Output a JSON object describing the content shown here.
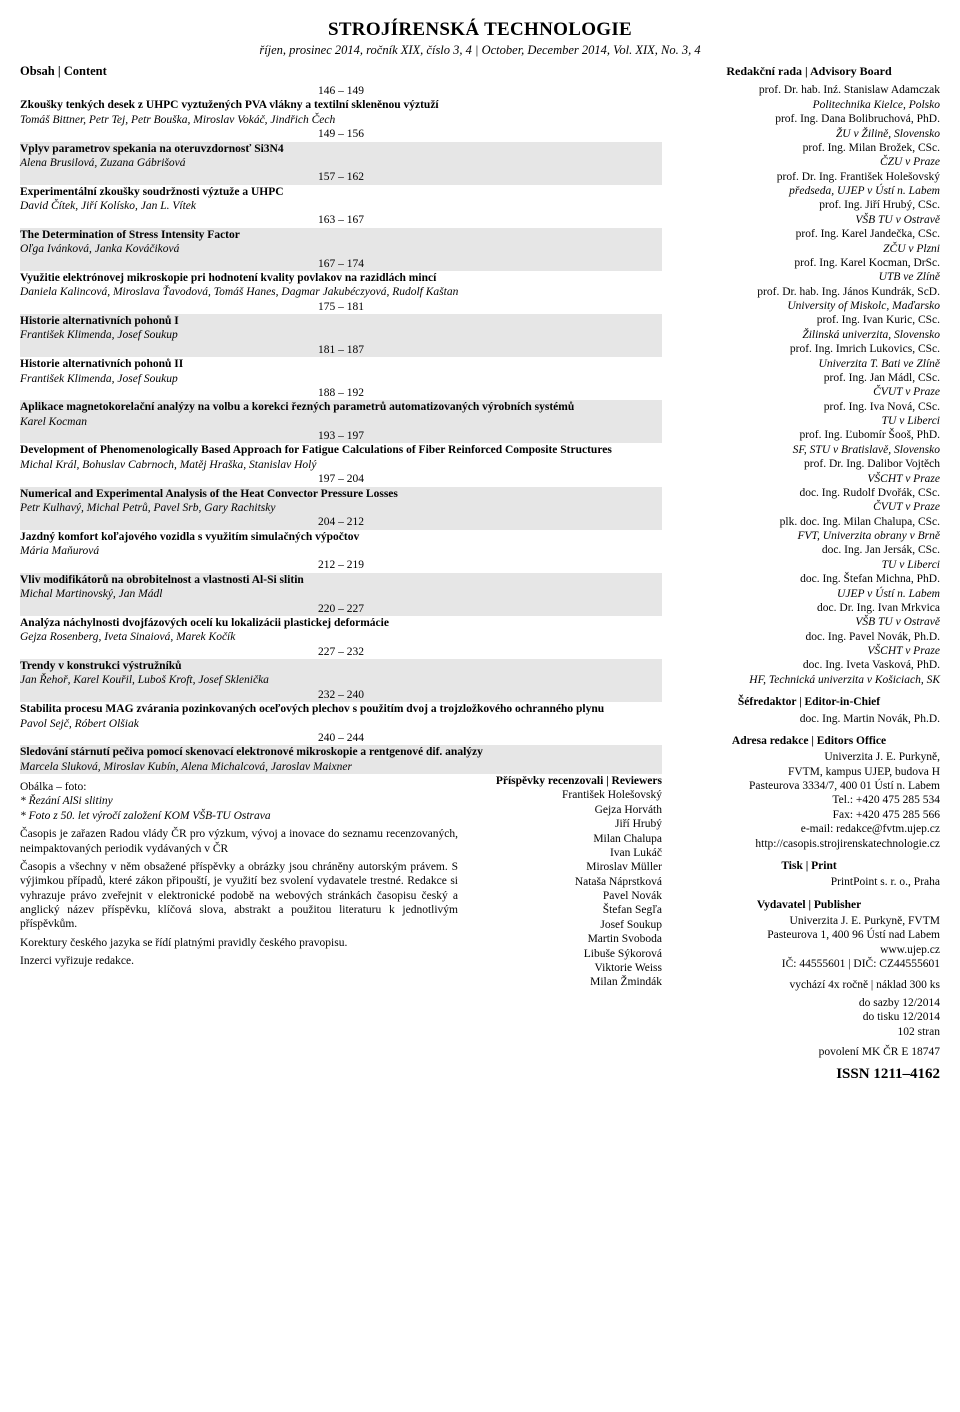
{
  "header": {
    "title": "STROJÍRENSKÁ TECHNOLOGIE",
    "subtitle": "říjen, prosinec 2014, ročník XIX, číslo 3, 4 | October, December 2014, Vol. XIX, No. 3, 4"
  },
  "obsah_label": "Obsah | Content",
  "entries": [
    {
      "pages": "146 – 149",
      "title": "Zkoušky tenkých desek z UHPC vyztužených PVA vlákny a textilní skleněnou výztuží",
      "authors": "Tomáš Bittner, Petr Tej, Petr Bouška, Miroslav Vokáč, Jindřich Čech",
      "gray": false
    },
    {
      "pages": "149 – 156",
      "title": "Vplyv parametrov spekania na oteruvzdornosť Si3N4",
      "authors": "Alena Brusilová, Zuzana Gábrišová",
      "gray": true
    },
    {
      "pages": "157 – 162",
      "title": "Experimentální zkoušky soudržnosti výztuže a UHPC",
      "authors": "David Čítek, Jiří Kolísko, Jan L. Vítek",
      "gray": false
    },
    {
      "pages": "163 – 167",
      "title": "The Determination of Stress Intensity Factor",
      "authors": "Oľga Ivánková, Janka Kováčiková",
      "gray": true
    },
    {
      "pages": "167 – 174",
      "title": "Využitie elektrónovej mikroskopie pri hodnotení kvality povlakov na razidlách mincí",
      "authors": "Daniela Kalincová, Miroslava Ťavodová, Tomáš Hanes, Dagmar Jakubéczyová, Rudolf Kaštan",
      "gray": false
    },
    {
      "pages": "175 – 181",
      "title": "Historie alternativních pohonů I",
      "authors": "František Klimenda, Josef Soukup",
      "gray": true
    },
    {
      "pages": "181 – 187",
      "title": "Historie alternativních pohonů II",
      "authors": "František Klimenda, Josef Soukup",
      "gray": false
    },
    {
      "pages": "188 – 192",
      "title": "Aplikace magnetokorelační analýzy na volbu a korekci řezných parametrů automatizovaných výrobních systémů",
      "authors": "Karel Kocman",
      "gray": true
    },
    {
      "pages": "193 – 197",
      "title": "Development of Phenomenologically Based Approach for Fatigue Calculations of Fiber Reinforced Composite Structures",
      "authors": "Michal Král, Bohuslav Cabrnoch, Matěj Hraška, Stanislav Holý",
      "gray": false
    },
    {
      "pages": "197 – 204",
      "title": "Numerical and Experimental Analysis of the Heat Convector Pressure Losses",
      "authors": "Petr Kulhavý, Michal Petrů, Pavel Srb, Gary Rachitsky",
      "gray": true
    },
    {
      "pages": "204 – 212",
      "title": "Jazdný komfort koľajového vozidla s využitím simulačných výpočtov",
      "authors": "Mária Maňurová",
      "gray": false
    },
    {
      "pages": "212 – 219",
      "title": "Vliv modifikátorů na obrobitelnost a vlastnosti Al-Si slitin",
      "authors": "Michal Martinovský, Jan Mádl",
      "gray": true
    },
    {
      "pages": "220 – 227",
      "title": "Analýza náchylnosti dvojfázových ocelí ku lokalizácii plastickej deformácie",
      "authors": "Gejza Rosenberg, Iveta Sinaiová, Marek Kočík",
      "gray": false
    },
    {
      "pages": "227 – 232",
      "title": "Trendy v konstrukci výstružníků",
      "authors": "Jan Řehoř, Karel Kouřil, Luboš Kroft, Josef Sklenička",
      "gray": true
    },
    {
      "pages": "232 – 240",
      "title": "Stabilita procesu MAG zvárania pozinkovaných oceľových plechov s použitím dvoj a trojzložkového ochranného plynu",
      "authors": "Pavol Sejč, Róbert Olšiak",
      "gray": false
    },
    {
      "pages": "240 – 244",
      "title": "Sledování stárnutí pečiva pomocí skenovací elektronové mikroskopie a rentgenové dif. analýzy",
      "authors": "Marcela Sluková, Miroslav Kubín, Alena Michalcová, Jaroslav Maixner",
      "gray": true
    }
  ],
  "cover": {
    "heading": "Obálka – foto:",
    "line1": "* Řezání AlSi slitiny",
    "line2": "* Foto z 50. let výročí založení KOM VŠB-TU Ostrava"
  },
  "disclaimers": [
    "Časopis je zařazen Radou vlády ČR pro výzkum, vývoj a inovace do seznamu recenzovaných, neimpaktovaných periodik vydávaných v ČR",
    "Časopis a všechny v něm obsažené příspěvky a obrázky jsou chráněny autorským právem. S výjimkou případů, které zákon připouští, je využití bez svolení vydavatele trestné. Redakce si vyhrazuje právo zveřejnit v elektronické podobě na webových stránkách časopisu český a anglický název příspěvku, klíčová slova, abstrakt a použitou literaturu k jednotlivým příspěvkům.",
    "Korektury českého jazyka se řídí platnými pravidly českého pravopisu.",
    "Inzerci vyřizuje redakce."
  ],
  "reviewers": {
    "heading": "Příspěvky recenzovali | Reviewers",
    "names": [
      "František Holešovský",
      "Gejza Horváth",
      "Jiří Hrubý",
      "Milan Chalupa",
      "Ivan Lukáč",
      "Miroslav Müller",
      "Nataša Náprstková",
      "Pavel Novák",
      "Štefan Segľa",
      "Josef Soukup",
      "Martin Svoboda",
      "Libuše Sýkorová",
      "Viktorie Weiss",
      "Milan Žmindák"
    ]
  },
  "board_heading": "Redakční rada | Advisory Board",
  "board": [
    {
      "name": "prof. Dr. hab. Inź. Stanislaw Adamczak",
      "aff": "Politechnika Kielce, Polsko"
    },
    {
      "name": "prof. Ing. Dana Bolibruchová, PhD.",
      "aff": "ŽU v Žilině, Slovensko"
    },
    {
      "name": "prof. Ing. Milan Brožek, CSc.",
      "aff": "ČZU v Praze"
    },
    {
      "name": "prof. Dr. Ing. František Holešovský",
      "aff": "předseda, UJEP v Ústí n. Labem"
    },
    {
      "name": "prof. Ing. Jiří Hrubý, CSc.",
      "aff": "VŠB TU v Ostravě"
    },
    {
      "name": "prof. Ing. Karel Jandečka, CSc.",
      "aff": "ZČU v Plzni"
    },
    {
      "name": "prof. Ing. Karel Kocman, DrSc.",
      "aff": "UTB ve Zlíně"
    },
    {
      "name": "prof. Dr. hab. Ing. János Kundrák, ScD.",
      "aff": "University of Miskolc, Maďarsko"
    },
    {
      "name": "prof. Ing. Ivan Kuric, CSc.",
      "aff": "Žilinská univerzita, Slovensko"
    },
    {
      "name": "prof. Ing. Imrich Lukovics, CSc.",
      "aff": "Univerzita T. Bati ve Zlíně"
    },
    {
      "name": "prof. Ing. Jan Mádl, CSc.",
      "aff": "ČVUT v Praze"
    },
    {
      "name": "prof. Ing. Iva Nová, CSc.",
      "aff": "TU v Liberci"
    },
    {
      "name": "prof. Ing. Ľubomír Šooš, PhD.",
      "aff": "SF, STU v Bratislavě, Slovensko"
    },
    {
      "name": "prof. Dr. Ing. Dalibor Vojtěch",
      "aff": "VŠCHT v Praze"
    },
    {
      "name": "doc. Ing. Rudolf Dvořák, CSc.",
      "aff": "ČVUT v Praze"
    },
    {
      "name": "plk. doc. Ing. Milan Chalupa, CSc.",
      "aff": "FVT, Univerzita obrany v Brně"
    },
    {
      "name": "doc. Ing. Jan Jersák, CSc.",
      "aff": "TU v Liberci"
    },
    {
      "name": "doc. Ing. Štefan Michna, PhD.",
      "aff": "UJEP v Ústí n. Labem"
    },
    {
      "name": "doc. Dr. Ing. Ivan Mrkvica",
      "aff": "VŠB TU v Ostravě"
    },
    {
      "name": "doc. Ing. Pavel Novák, Ph.D.",
      "aff": "VŠCHT v Praze"
    },
    {
      "name": "doc. Ing. Iveta Vasková, PhD.",
      "aff": "HF, Technická univerzita v Košiciach, SK"
    }
  ],
  "editor_chief": {
    "heading": "Šéfredaktor | Editor-in-Chief",
    "name": "doc. Ing. Martin Novák, Ph.D."
  },
  "editors_office": {
    "heading": "Adresa redakce | Editors Office",
    "lines": [
      "Univerzita J. E. Purkyně,",
      "FVTM, kampus UJEP, budova H",
      "Pasteurova 3334/7, 400 01 Ústí n. Labem",
      "Tel.: +420 475 285 534",
      "Fax: +420 475 285 566",
      "e-mail: redakce@fvtm.ujep.cz",
      "http://casopis.strojirenskatechnologie.cz"
    ]
  },
  "print": {
    "heading": "Tisk | Print",
    "line": "PrintPoint s. r. o., Praha"
  },
  "publisher": {
    "heading": "Vydavatel | Publisher",
    "lines": [
      "Univerzita J. E. Purkyně, FVTM",
      "Pasteurova 1, 400 96 Ústí nad Labem",
      "www.ujep.cz",
      "IČ: 44555601 | DIČ: CZ44555601"
    ]
  },
  "circulation": "vychází 4x ročně | náklad 300 ks",
  "dates": [
    "do sazby 12/2014",
    "do tisku 12/2014",
    "102 stran"
  ],
  "permission": "povolení MK ČR E 18747",
  "issn": "ISSN 1211–4162"
}
